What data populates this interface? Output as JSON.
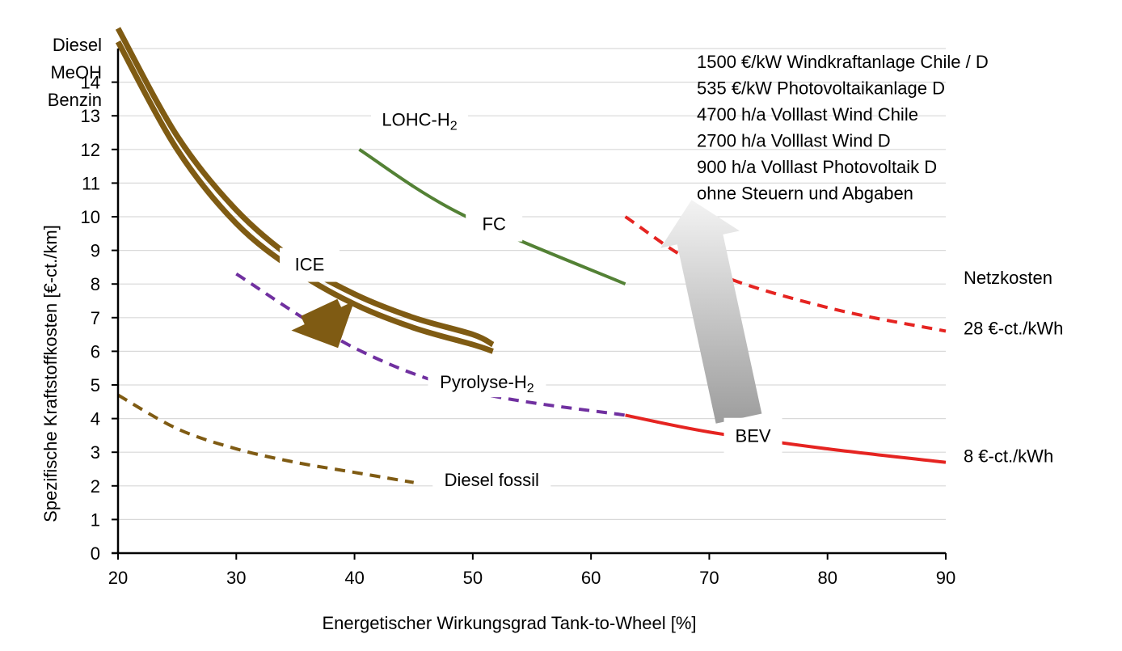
{
  "chart_data": {
    "type": "line",
    "title": "",
    "xlabel": "Energetischer Wirkungsgrad Tank-to-Wheel [%]",
    "ylabel": "Spezifische Kraftstoffkosten [€-ct./km]",
    "xlim": [
      20,
      90
    ],
    "ylim": [
      0,
      15
    ],
    "xticks": [
      "20",
      "30",
      "40",
      "50",
      "60",
      "70",
      "80",
      "90"
    ],
    "yticks": [
      "0",
      "1",
      "2",
      "3",
      "4",
      "5",
      "6",
      "7",
      "8",
      "9",
      "10",
      "11",
      "12",
      "13",
      "14"
    ],
    "grid": "horizontal",
    "top_labels": [
      "Diesel",
      "MeOH",
      "Benzin"
    ],
    "assumptions": [
      "1500 €/kW Windkraftanlage Chile / D",
      "535 €/kW Photovoltaikanlage D",
      "4700 h/a Volllast Wind Chile",
      "2700 h/a Volllast Wind D",
      "900 h/a Volllast Photovoltaik D",
      "ohne Steuern und Abgaben"
    ],
    "series": [
      {
        "label": "ICE",
        "color": "#7f5b13",
        "style": "thick",
        "points": [
          [
            20,
            15.6
          ],
          [
            25,
            12.4
          ],
          [
            30,
            10.2
          ],
          [
            35,
            8.7
          ],
          [
            40,
            7.7
          ],
          [
            45,
            7.0
          ],
          [
            50,
            6.5
          ],
          [
            51.7,
            6.2
          ]
        ]
      },
      {
        "label": "ICE",
        "color": "#7f5b13",
        "style": "thick",
        "points": [
          [
            20,
            15.2
          ],
          [
            25,
            12.0
          ],
          [
            30,
            9.8
          ],
          [
            35,
            8.4
          ],
          [
            40,
            7.4
          ],
          [
            45,
            6.7
          ],
          [
            50,
            6.2
          ],
          [
            51.7,
            6.0
          ]
        ]
      },
      {
        "label": "LOHC-H2",
        "color": "#538135",
        "style": "solid",
        "points": [
          [
            40.4,
            12.0
          ],
          [
            48.9,
            10.1
          ],
          [
            62.9,
            8.0
          ]
        ]
      },
      {
        "label": "Pyrolyse-H2",
        "color": "#7030a0",
        "style": "dashed",
        "points": [
          [
            30,
            8.3
          ],
          [
            40,
            6.1
          ],
          [
            50,
            4.8
          ],
          [
            62.9,
            4.1
          ]
        ]
      },
      {
        "label": "Diesel fossil",
        "color": "#7f5b13",
        "style": "dashed",
        "points": [
          [
            20,
            4.7
          ],
          [
            25,
            3.7
          ],
          [
            30,
            3.1
          ],
          [
            35,
            2.7
          ],
          [
            40,
            2.4
          ],
          [
            45,
            2.1
          ]
        ]
      },
      {
        "label": "28 €-ct./kWh",
        "color": "#e52421",
        "style": "dashed",
        "points": [
          [
            62.9,
            10.0
          ],
          [
            70,
            8.4
          ],
          [
            80,
            7.3
          ],
          [
            90,
            6.6
          ]
        ]
      },
      {
        "label": "8 €-ct./kWh",
        "color": "#e52421",
        "style": "solid",
        "points": [
          [
            62.9,
            4.1
          ],
          [
            70,
            3.6
          ],
          [
            80,
            3.1
          ],
          [
            90,
            2.7
          ]
        ]
      }
    ],
    "annotations": [
      {
        "text": "LOHC-H2",
        "x": 45.5,
        "y": 12.7
      },
      {
        "text": "FC",
        "x": 51.8,
        "y": 9.6
      },
      {
        "text": "ICE",
        "x": 36.2,
        "y": 8.4
      },
      {
        "text": "Pyrolyse-H2",
        "x": 51.2,
        "y": 4.9
      },
      {
        "text": "Diesel fossil",
        "x": 51.6,
        "y": 2.0
      },
      {
        "text": "BEV",
        "x": 73.7,
        "y": 3.3
      },
      {
        "text": "Netzkosten",
        "x": 91.5,
        "y": 8.0
      },
      {
        "text": "28 €-ct./kWh",
        "x": 91.5,
        "y": 6.5
      },
      {
        "text": "8 €-ct./kWh",
        "x": 91.5,
        "y": 2.7
      }
    ],
    "arrows": [
      {
        "name": "ice-arrow",
        "color": "#7f5b13",
        "from": [
          37,
          7.3
        ],
        "to": [
          38.6,
          6.1
        ]
      },
      {
        "name": "bev-arrow",
        "color": "#a6a6a6",
        "from": [
          72.5,
          4.0
        ],
        "to": [
          68.5,
          10.5
        ]
      }
    ]
  }
}
